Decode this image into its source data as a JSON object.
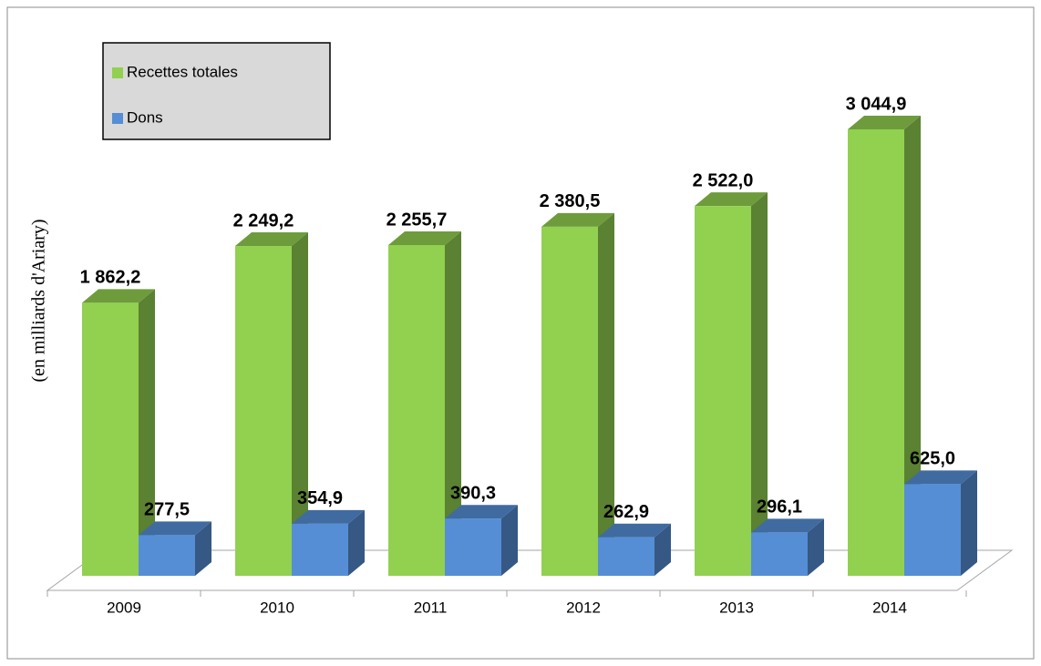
{
  "chart_data": {
    "type": "bar3d",
    "y_label": "(en milliards d'Ariary)",
    "categories": [
      "2009",
      "2010",
      "2011",
      "2012",
      "2013",
      "2014"
    ],
    "series": [
      {
        "name": "Recettes totales",
        "color": "#92d050",
        "values": [
          1862.2,
          2249.2,
          2255.7,
          2380.5,
          2522.0,
          3044.9
        ],
        "value_labels": [
          "1 862,2",
          "2 249,2",
          "2 255,7",
          "2 380,5",
          "2 522,0",
          "3 044,9"
        ]
      },
      {
        "name": "Dons",
        "color": "#558ed5",
        "values": [
          277.5,
          354.9,
          390.3,
          262.9,
          296.1,
          625.0
        ],
        "value_labels": [
          "277,5",
          "354,9",
          "390,3",
          "262,9",
          "296,1",
          "625,0"
        ]
      }
    ],
    "legend": "top-left"
  }
}
